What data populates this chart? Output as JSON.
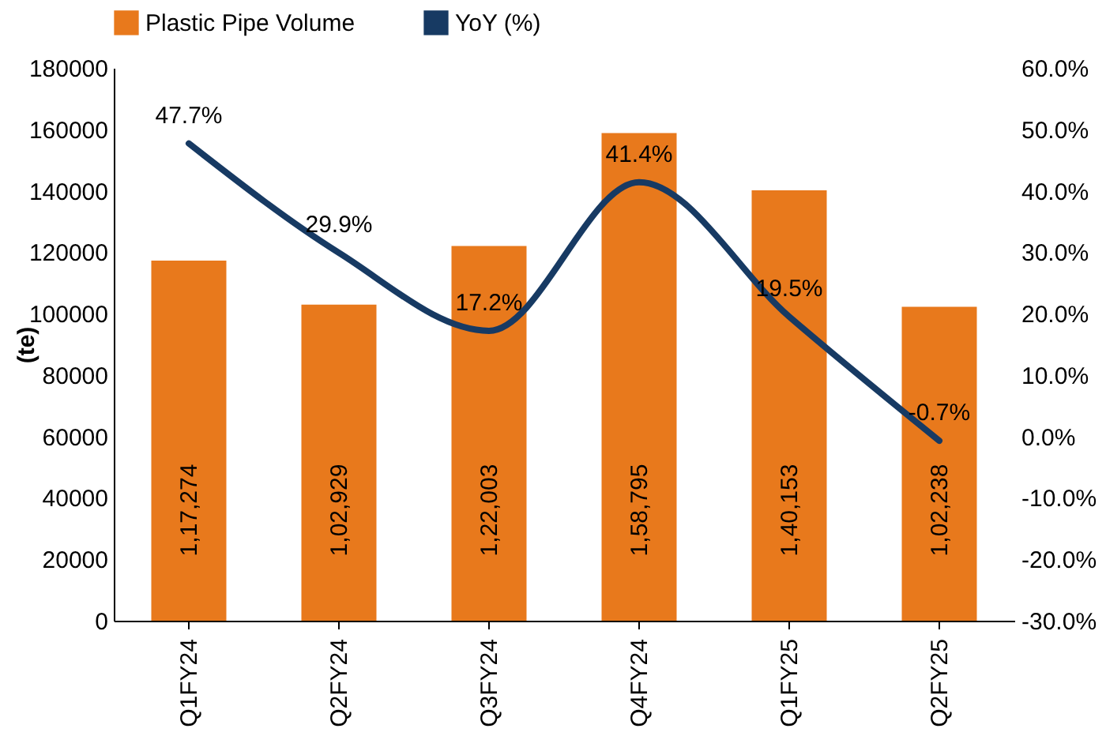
{
  "chart_data": {
    "type": "bar",
    "ylabel": "(te)",
    "categories": [
      "Q1FY24",
      "Q2FY24",
      "Q3FY24",
      "Q4FY24",
      "Q1FY25",
      "Q2FY25"
    ],
    "series": [
      {
        "name": "Plastic Pipe Volume",
        "color": "#e8791c",
        "values": [
          117274,
          102929,
          122003,
          158795,
          140153,
          102238
        ],
        "value_labels": [
          "1,17,274",
          "1,02,929",
          "1,22,003",
          "1,58,795",
          "1,40,153",
          "1,02,238"
        ]
      },
      {
        "name": "YoY (%)",
        "type": "line",
        "axis": "y2",
        "color": "#173a63",
        "values": [
          47.7,
          29.9,
          17.2,
          41.4,
          19.5,
          -0.7
        ],
        "value_labels": [
          "47.7%",
          "29.9%",
          "17.2%",
          "41.4%",
          "19.5%",
          "-0.7%"
        ]
      }
    ],
    "ylim": [
      0,
      180000
    ],
    "yticks": [
      0,
      20000,
      40000,
      60000,
      80000,
      100000,
      120000,
      140000,
      160000,
      180000
    ],
    "y2lim": [
      -30,
      60
    ],
    "y2ticks": [
      {
        "value": -30,
        "label": "-30.0%"
      },
      {
        "value": -20,
        "label": "-20.0%"
      },
      {
        "value": -10,
        "label": "-10.0%"
      },
      {
        "value": 0,
        "label": "0.0%"
      },
      {
        "value": 10,
        "label": "10.0%"
      },
      {
        "value": 20,
        "label": "20.0%"
      },
      {
        "value": 30,
        "label": "30.0%"
      },
      {
        "value": 40,
        "label": "40.0%"
      },
      {
        "value": 50,
        "label": "50.0%"
      },
      {
        "value": 60,
        "label": "60.0%"
      }
    ],
    "grid": false,
    "legend": "top"
  }
}
